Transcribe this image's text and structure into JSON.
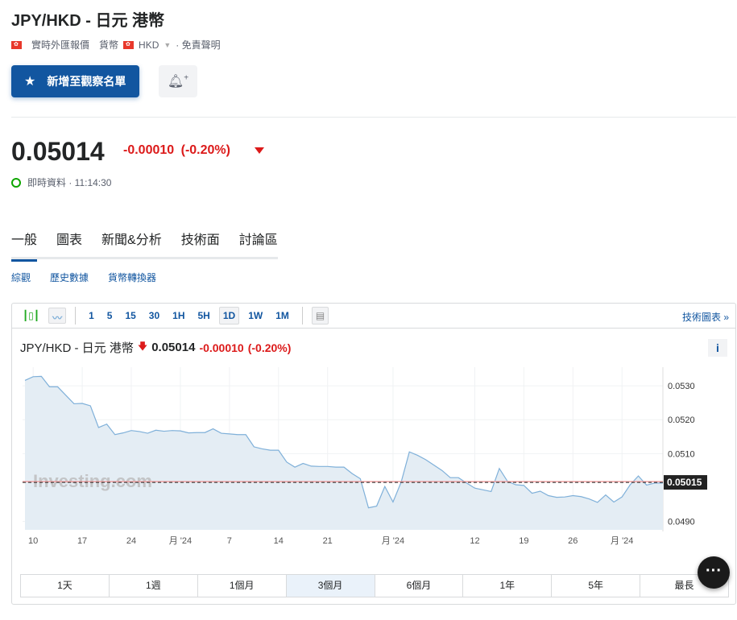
{
  "header": {
    "title": "JPY/HKD - 日元 港幣",
    "meta_label": "實時外匯報價",
    "type_label": "貨幣",
    "currency": "HKD",
    "disclaimer": "· 免責聲明"
  },
  "actions": {
    "watchlist": "新增至觀察名單",
    "alert_icon": "bell-plus-icon"
  },
  "quote": {
    "price": "0.05014",
    "change": "-0.00010",
    "change_pct": "(-0.20%)",
    "status": "即時資料 · 11:14:30",
    "down_color": "#dc1a1a"
  },
  "tabs": [
    {
      "label": "一般",
      "active": true
    },
    {
      "label": "圖表"
    },
    {
      "label": "新聞&分析"
    },
    {
      "label": "技術面"
    },
    {
      "label": "討論區"
    }
  ],
  "subtabs": [
    "綜觀",
    "歷史數據",
    "貨幣轉換器"
  ],
  "toolbar": {
    "intervals": [
      "1",
      "5",
      "15",
      "30",
      "1H",
      "5H",
      "1D",
      "1W",
      "1M"
    ],
    "active_interval": "1D",
    "tech_chart": "技術圖表 »"
  },
  "chart_header": {
    "title": "JPY/HKD - 日元 港幣",
    "price": "0.05014",
    "change": "-0.00010",
    "change_pct": "(-0.20%)",
    "info": "i"
  },
  "ranges": [
    {
      "label": "1天"
    },
    {
      "label": "1週"
    },
    {
      "label": "1個月"
    },
    {
      "label": "3個月",
      "active": true
    },
    {
      "label": "6個月"
    },
    {
      "label": "1年"
    },
    {
      "label": "5年"
    },
    {
      "label": "最長"
    }
  ],
  "chart_data": {
    "type": "area",
    "ylim": [
      0.04875,
      0.05355
    ],
    "y_ticks": [
      "0.0530",
      "0.0520",
      "0.0510",
      "0.0490"
    ],
    "current_label": "0.05015",
    "current_value": 0.05015,
    "watermark": "Investing.com",
    "line_color": "#7fb0d9",
    "fill_color": "#e4edf4",
    "x_ticks": [
      {
        "label": "10",
        "index": 1
      },
      {
        "label": "17",
        "index": 7
      },
      {
        "label": "24",
        "index": 13
      },
      {
        "label": "月 '24",
        "index": 19
      },
      {
        "label": "7",
        "index": 25
      },
      {
        "label": "14",
        "index": 31
      },
      {
        "label": "21",
        "index": 37
      },
      {
        "label": "月 '24",
        "index": 45
      },
      {
        "label": "12",
        "index": 55
      },
      {
        "label": "19",
        "index": 61
      },
      {
        "label": "26",
        "index": 67
      },
      {
        "label": "月 '24",
        "index": 73
      }
    ],
    "values": [
      0.05316,
      0.05327,
      0.05328,
      0.05297,
      0.05297,
      0.05272,
      0.05247,
      0.05248,
      0.05241,
      0.05177,
      0.05187,
      0.05156,
      0.05161,
      0.05168,
      0.05165,
      0.0516,
      0.05169,
      0.05166,
      0.05168,
      0.05167,
      0.05161,
      0.05162,
      0.05162,
      0.05173,
      0.0516,
      0.05158,
      0.05156,
      0.05156,
      0.0512,
      0.05114,
      0.0511,
      0.0511,
      0.05075,
      0.0506,
      0.05071,
      0.05063,
      0.05062,
      0.05062,
      0.0506,
      0.0506,
      0.05041,
      0.05026,
      0.0494,
      0.04945,
      0.05003,
      0.04957,
      0.05016,
      0.05105,
      0.05095,
      0.05082,
      0.05066,
      0.0505,
      0.05029,
      0.05029,
      0.05013,
      0.04998,
      0.04993,
      0.04988,
      0.05056,
      0.05018,
      0.05008,
      0.05006,
      0.04983,
      0.04989,
      0.04976,
      0.04971,
      0.04972,
      0.04976,
      0.04973,
      0.04966,
      0.04956,
      0.04978,
      0.04957,
      0.04972,
      0.05008,
      0.05034,
      0.05007,
      0.05013,
      0.05013
    ]
  }
}
